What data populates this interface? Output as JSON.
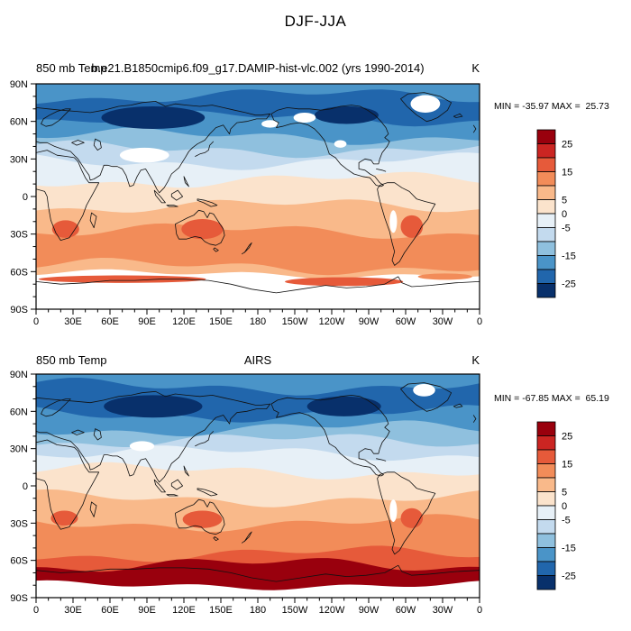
{
  "main_title": "DJF-JJA",
  "panels": [
    {
      "left_title": "850 mb Temp",
      "center_title": "b.e21.B1850cmip6.f09_g17.DAMIP-hist-vlc.002 (yrs 1990-2014)",
      "units": "K",
      "stats": "MIN = -35.97 MAX =  25.73"
    },
    {
      "left_title": "850 mb Temp",
      "center_title": "AIRS",
      "units": "K",
      "stats": "MIN = -67.85 MAX =  65.19"
    }
  ],
  "chart_data": [
    {
      "type": "heatmap",
      "subtype": "filled_contour_world_map",
      "variable": "850 mb Temperature seasonal difference",
      "season_difference": "DJF-JJA",
      "title": "b.e21.B1850cmip6.f09_g17.DAMIP-hist-vlc.002 (yrs 1990-2014)",
      "units": "K",
      "min": -35.97,
      "max": 25.73,
      "lon_axis": {
        "range_deg": [
          0,
          360
        ],
        "tick_labels": [
          "0",
          "30E",
          "60E",
          "90E",
          "120E",
          "150E",
          "180",
          "150W",
          "120W",
          "90W",
          "60W",
          "30W",
          "0"
        ]
      },
      "lat_axis": {
        "range_deg": [
          90,
          -90
        ],
        "tick_labels": [
          "90N",
          "60N",
          "30N",
          "0",
          "30S",
          "60S",
          "90S"
        ]
      },
      "colorbar": {
        "bin_edges": [
          -30,
          -25,
          -20,
          -15,
          -10,
          -5,
          0,
          5,
          10,
          15,
          20,
          25,
          30
        ],
        "labeled_values": [
          25,
          15,
          5,
          0,
          -5,
          -15,
          -25
        ],
        "colors_bottom_to_top": [
          "#08306B",
          "#2166AC",
          "#4A94C8",
          "#8FC0DE",
          "#C3DAEE",
          "#E7F0F7",
          "#FBE3CC",
          "#F9B98A",
          "#F28C59",
          "#E65A3A",
          "#CB2522",
          "#99000D"
        ]
      },
      "zonal_bands": [
        {
          "from_lat": 90,
          "to_lat": 80,
          "value": -17
        },
        {
          "from_lat": 80,
          "to_lat": 62,
          "value": -22
        },
        {
          "from_lat": 62,
          "to_lat": 48,
          "value": -17
        },
        {
          "from_lat": 48,
          "to_lat": 38,
          "value": -12
        },
        {
          "from_lat": 38,
          "to_lat": 28,
          "value": -7
        },
        {
          "from_lat": 28,
          "to_lat": 13,
          "value": -2
        },
        {
          "from_lat": 13,
          "to_lat": -8,
          "value": 2
        },
        {
          "from_lat": -8,
          "to_lat": -28,
          "value": 7
        },
        {
          "from_lat": -28,
          "to_lat": -56,
          "value": 12
        },
        {
          "from_lat": -56,
          "to_lat": -62,
          "value": 7
        }
      ],
      "anomaly_blobs": [
        {
          "lon": 95,
          "lat": 63,
          "rlon": 42,
          "rlat": 9,
          "value": -27
        },
        {
          "lon": 252,
          "lat": 65,
          "rlon": 26,
          "rlat": 7,
          "value": -27
        },
        {
          "lon": 135,
          "lat": -26,
          "rlon": 17,
          "rlat": 8,
          "value": 17
        },
        {
          "lon": 24,
          "lat": -26,
          "rlon": 11,
          "rlat": 7,
          "value": 17
        },
        {
          "lon": 305,
          "lat": -24,
          "rlon": 9,
          "rlat": 9,
          "value": 17
        }
      ],
      "coastal_blobs": [
        {
          "lon": 70,
          "lat": -66,
          "rlon": 68,
          "rlat": 3,
          "value": 17
        },
        {
          "lon": 250,
          "lat": -68,
          "rlon": 48,
          "rlat": 3.5,
          "value": 17
        },
        {
          "lon": 332,
          "lat": -64,
          "rlon": 22,
          "rlat": 2.5,
          "value": 12
        }
      ],
      "missing_data": {
        "south_of_lat": -62,
        "ellipses": [
          {
            "lon": 88,
            "lat": 33,
            "rlon": 20,
            "rlat": 6
          },
          {
            "lon": 316,
            "lat": 74,
            "rlon": 12,
            "rlat": 7
          },
          {
            "lon": 247,
            "lat": 42,
            "rlon": 5,
            "rlat": 3
          },
          {
            "lon": 218,
            "lat": 63,
            "rlon": 9,
            "rlat": 4
          },
          {
            "lon": 190,
            "lat": 58,
            "rlon": 7,
            "rlat": 3
          },
          {
            "lon": 290,
            "lat": -20,
            "rlon": 3,
            "rlat": 9
          }
        ]
      }
    },
    {
      "type": "heatmap",
      "subtype": "filled_contour_world_map",
      "variable": "850 mb Temperature seasonal difference",
      "season_difference": "DJF-JJA",
      "title": "AIRS",
      "units": "K",
      "min": -67.85,
      "max": 65.19,
      "lon_axis": {
        "range_deg": [
          0,
          360
        ],
        "tick_labels": [
          "0",
          "30E",
          "60E",
          "90E",
          "120E",
          "150E",
          "180",
          "150W",
          "120W",
          "90W",
          "60W",
          "30W",
          "0"
        ]
      },
      "lat_axis": {
        "range_deg": [
          90,
          -90
        ],
        "tick_labels": [
          "90N",
          "60N",
          "30N",
          "0",
          "30S",
          "60S",
          "90S"
        ]
      },
      "colorbar": {
        "bin_edges": [
          -30,
          -25,
          -20,
          -15,
          -10,
          -5,
          0,
          5,
          10,
          15,
          20,
          25,
          30
        ],
        "labeled_values": [
          25,
          15,
          5,
          0,
          -5,
          -15,
          -25
        ],
        "colors_bottom_to_top": [
          "#08306B",
          "#2166AC",
          "#4A94C8",
          "#8FC0DE",
          "#C3DAEE",
          "#E7F0F7",
          "#FBE3CC",
          "#F9B98A",
          "#F28C59",
          "#E65A3A",
          "#CB2522",
          "#99000D"
        ]
      },
      "zonal_bands": [
        {
          "from_lat": 90,
          "to_lat": 80,
          "value": -17
        },
        {
          "from_lat": 80,
          "to_lat": 58,
          "value": -22
        },
        {
          "from_lat": 58,
          "to_lat": 46,
          "value": -17
        },
        {
          "from_lat": 46,
          "to_lat": 36,
          "value": -12
        },
        {
          "from_lat": 36,
          "to_lat": 26,
          "value": -7
        },
        {
          "from_lat": 26,
          "to_lat": 12,
          "value": -2
        },
        {
          "from_lat": 12,
          "to_lat": -10,
          "value": 2
        },
        {
          "from_lat": -10,
          "to_lat": -30,
          "value": 7
        },
        {
          "from_lat": -30,
          "to_lat": -55,
          "value": 12
        },
        {
          "from_lat": -55,
          "to_lat": -64,
          "value": 17
        },
        {
          "from_lat": -64,
          "to_lat": -80,
          "value": 27
        }
      ],
      "anomaly_blobs": [
        {
          "lon": 95,
          "lat": 64,
          "rlon": 40,
          "rlat": 9,
          "value": -30
        },
        {
          "lon": 250,
          "lat": 64,
          "rlon": 30,
          "rlat": 8,
          "value": -30
        },
        {
          "lon": 135,
          "lat": -27,
          "rlon": 16,
          "rlat": 7,
          "value": 17
        },
        {
          "lon": 23,
          "lat": -26,
          "rlon": 11,
          "rlat": 6,
          "value": 17
        },
        {
          "lon": 305,
          "lat": -26,
          "rlon": 9,
          "rlat": 8,
          "value": 17
        }
      ],
      "coastal_blobs": [],
      "missing_data": {
        "south_of_lat": -80,
        "ellipses": [
          {
            "lon": 86,
            "lat": 32,
            "rlon": 10,
            "rlat": 4
          },
          {
            "lon": 315,
            "lat": 77,
            "rlon": 9,
            "rlat": 5
          },
          {
            "lon": 290,
            "lat": -20,
            "rlon": 3,
            "rlat": 9
          }
        ]
      }
    }
  ]
}
